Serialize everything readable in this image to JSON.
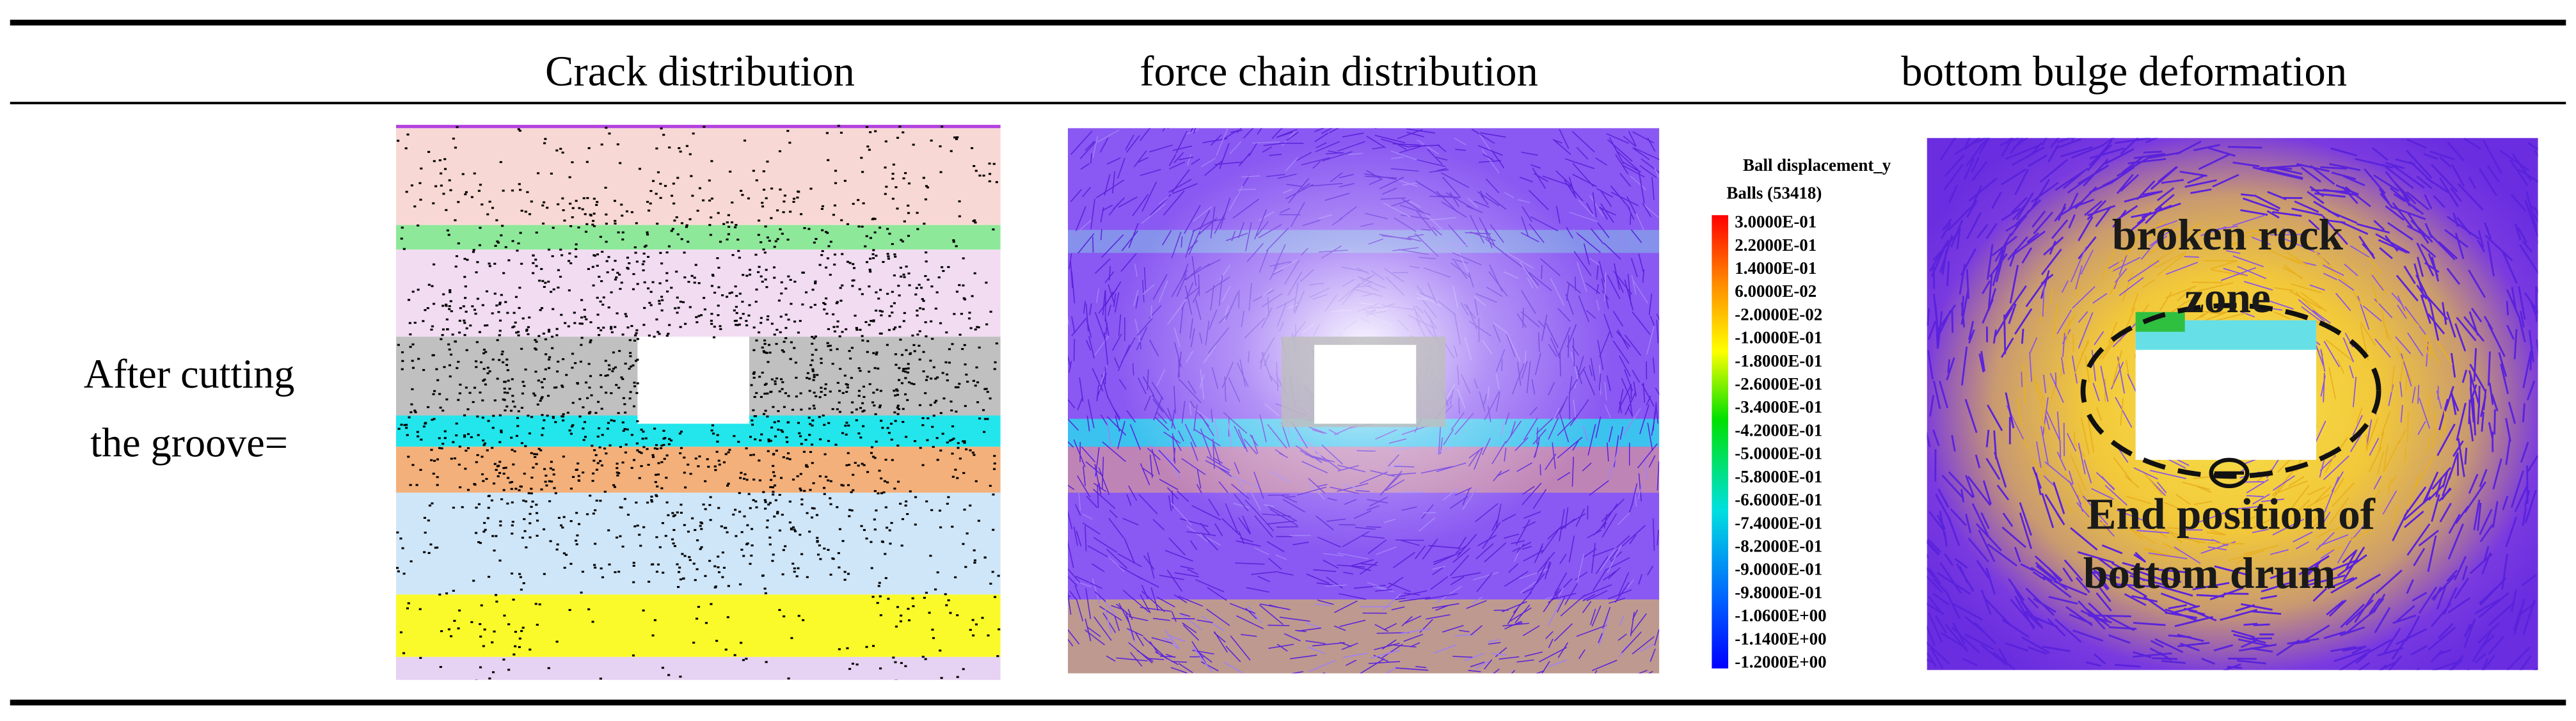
{
  "table": {
    "headers": [
      "Crack distribution",
      "force chain distribution",
      "bottom bulge deformation"
    ],
    "rows": [
      {
        "label": [
          "After cutting",
          "the groove="
        ]
      }
    ]
  },
  "legend": {
    "title": "Ball displacement_y",
    "subtitle": "Balls (53418)",
    "values": [
      "3.0000E-01",
      "2.2000E-01",
      "1.4000E-01",
      "6.0000E-02",
      "-2.0000E-02",
      "-1.0000E-01",
      "-1.8000E-01",
      "-2.6000E-01",
      "-3.4000E-01",
      "-4.2000E-01",
      "-5.0000E-01",
      "-5.8000E-01",
      "-6.6000E-01",
      "-7.4000E-01",
      "-8.2000E-01",
      "-9.0000E-01",
      "-9.8000E-01",
      "-1.0600E+00",
      "-1.1400E+00",
      "-1.2000E+00"
    ]
  },
  "annotations": {
    "zone": [
      "broken rock",
      "zone"
    ],
    "end": [
      "End position of",
      "bottom drum"
    ]
  }
}
